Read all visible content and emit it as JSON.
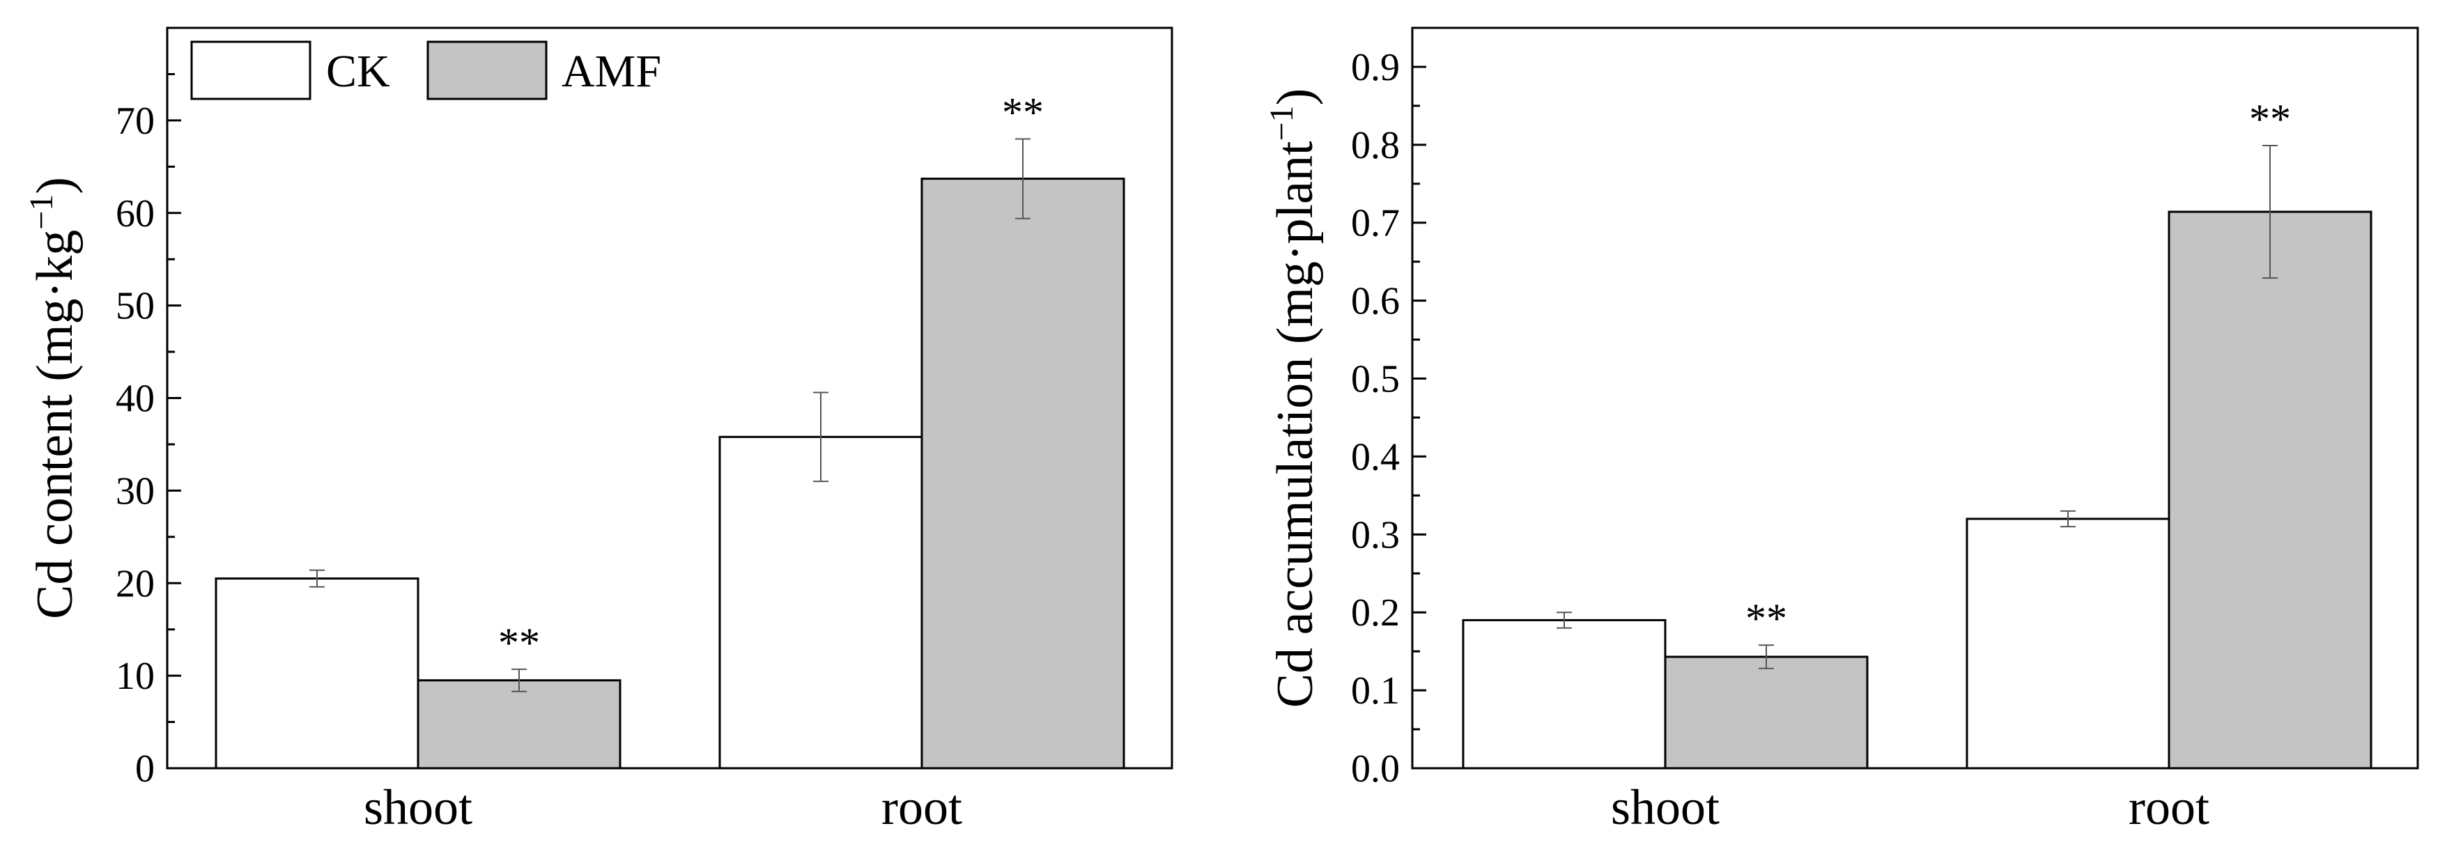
{
  "colors": {
    "ck_fill": "#ffffff",
    "amf_fill": "#c4c4c4",
    "stroke": "#000000",
    "error_bar": "#555555"
  },
  "legend": {
    "ck": "CK",
    "amf": "AMF"
  },
  "chart_data": [
    {
      "type": "bar",
      "ylabel": "Cd content (mg·kg",
      "ylabel_sup": "−1",
      "ylabel_tail": ")",
      "ylim": [
        0,
        80
      ],
      "yticks": [
        0,
        10,
        20,
        30,
        40,
        50,
        60,
        70
      ],
      "ytick_labels": [
        "0",
        "10",
        "20",
        "30",
        "40",
        "50",
        "60",
        "70"
      ],
      "minor_step": 5,
      "categories": [
        "shoot",
        "root"
      ],
      "series": [
        {
          "name": "CK",
          "values": [
            20.5,
            35.8
          ],
          "errors": [
            0.9,
            4.8
          ],
          "annotations": [
            "",
            ""
          ]
        },
        {
          "name": "AMF",
          "values": [
            9.5,
            63.7
          ],
          "errors": [
            1.2,
            4.3
          ],
          "annotations": [
            "**",
            "**"
          ]
        }
      ],
      "legend_position": "top-left",
      "grid": false
    },
    {
      "type": "bar",
      "ylabel": "Cd accumulation (mg·plant",
      "ylabel_sup": "−1",
      "ylabel_tail": ")",
      "ylim": [
        0,
        0.95
      ],
      "yticks": [
        0,
        0.1,
        0.2,
        0.3,
        0.4,
        0.5,
        0.6,
        0.7,
        0.8,
        0.9
      ],
      "ytick_labels": [
        "0.0",
        "0.1",
        "0.2",
        "0.3",
        "0.4",
        "0.5",
        "0.6",
        "0.7",
        "0.8",
        "0.9"
      ],
      "minor_step": 0.05,
      "categories": [
        "shoot",
        "root"
      ],
      "series": [
        {
          "name": "CK",
          "values": [
            0.19,
            0.32
          ],
          "errors": [
            0.01,
            0.01
          ],
          "annotations": [
            "",
            ""
          ]
        },
        {
          "name": "AMF",
          "values": [
            0.143,
            0.714
          ],
          "errors": [
            0.015,
            0.085
          ],
          "annotations": [
            "**",
            "**"
          ]
        }
      ],
      "legend_position": "none",
      "grid": false
    }
  ]
}
